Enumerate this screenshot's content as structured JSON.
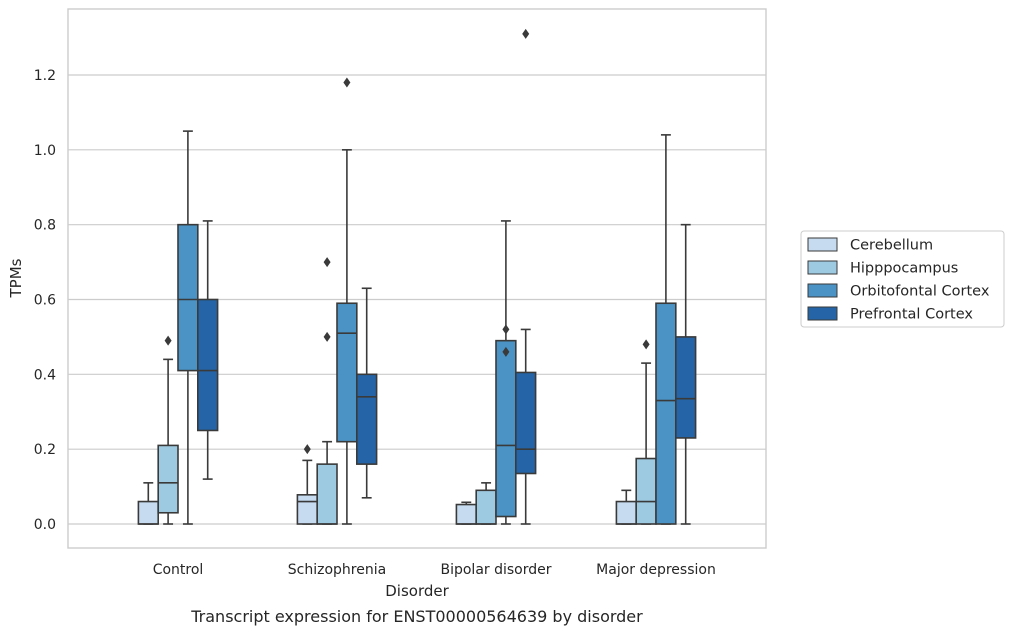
{
  "chart_data": {
    "type": "boxplot",
    "title": "",
    "caption": "Transcript expression for ENST00000564639 by disorder",
    "xlabel": "Disorder",
    "ylabel": "TPMs",
    "ylim": [
      -0.065,
      1.37
    ],
    "yticks": [
      0.0,
      0.2,
      0.4,
      0.6,
      0.8,
      1.0,
      1.2
    ],
    "ytick_labels": [
      "0.0",
      "0.2",
      "0.4",
      "0.6",
      "0.8",
      "1.0",
      "1.2"
    ],
    "categories": [
      "Control",
      "Schizophrenia",
      "Bipolar disorder",
      "Major depression"
    ],
    "grid": "horizontal",
    "legend": {
      "placement": "right",
      "entries": [
        "Cerebellum",
        "Hipppocampus",
        "Orbitofontal Cortex",
        "Prefrontal Cortex"
      ]
    },
    "colors": {
      "Cerebellum": "#c6dbef",
      "Hipppocampus": "#9ecae1",
      "Orbitofontal Cortex": "#4b93c4",
      "Prefrontal Cortex": "#2565a7",
      "box_edge": "#3a3a3a",
      "grid": "#cccccc"
    },
    "series": [
      {
        "name": "Cerebellum",
        "boxes": [
          {
            "whislo": 0.0,
            "q1": 0.0,
            "med": 0.0,
            "q3": 0.06,
            "whishi": 0.11,
            "fliers": []
          },
          {
            "whislo": 0.0,
            "q1": 0.0,
            "med": 0.06,
            "q3": 0.078,
            "whishi": 0.17,
            "fliers": [
              0.2
            ]
          },
          {
            "whislo": 0.0,
            "q1": 0.0,
            "med": 0.0,
            "q3": 0.052,
            "whishi": 0.058,
            "fliers": []
          },
          {
            "whislo": 0.0,
            "q1": 0.0,
            "med": 0.0,
            "q3": 0.06,
            "whishi": 0.09,
            "fliers": []
          }
        ]
      },
      {
        "name": "Hipppocampus",
        "boxes": [
          {
            "whislo": 0.0,
            "q1": 0.03,
            "med": 0.11,
            "q3": 0.21,
            "whishi": 0.44,
            "fliers": [
              0.49
            ]
          },
          {
            "whislo": 0.0,
            "q1": 0.0,
            "med": 0.0,
            "q3": 0.16,
            "whishi": 0.22,
            "fliers": [
              0.5,
              0.7
            ]
          },
          {
            "whislo": 0.0,
            "q1": 0.0,
            "med": 0.0,
            "q3": 0.09,
            "whishi": 0.11,
            "fliers": []
          },
          {
            "whislo": 0.0,
            "q1": 0.0,
            "med": 0.06,
            "q3": 0.175,
            "whishi": 0.43,
            "fliers": [
              0.48
            ]
          }
        ]
      },
      {
        "name": "Orbitofontal Cortex",
        "boxes": [
          {
            "whislo": 0.0,
            "q1": 0.41,
            "med": 0.6,
            "q3": 0.8,
            "whishi": 1.05,
            "fliers": []
          },
          {
            "whislo": 0.0,
            "q1": 0.22,
            "med": 0.51,
            "q3": 0.59,
            "whishi": 1.0,
            "fliers": [
              1.18
            ]
          },
          {
            "whislo": 0.0,
            "q1": 0.02,
            "med": 0.21,
            "q3": 0.49,
            "whishi": 0.81,
            "fliers": [
              0.46,
              0.52
            ]
          },
          {
            "whislo": 0.0,
            "q1": 0.0,
            "med": 0.33,
            "q3": 0.59,
            "whishi": 1.04,
            "fliers": []
          }
        ]
      },
      {
        "name": "Prefrontal Cortex",
        "boxes": [
          {
            "whislo": 0.12,
            "q1": 0.25,
            "med": 0.41,
            "q3": 0.6,
            "whishi": 0.81,
            "fliers": []
          },
          {
            "whislo": 0.07,
            "q1": 0.16,
            "med": 0.34,
            "q3": 0.4,
            "whishi": 0.63,
            "fliers": []
          },
          {
            "whislo": 0.0,
            "q1": 0.135,
            "med": 0.2,
            "q3": 0.405,
            "whishi": 0.52,
            "fliers": [
              1.31
            ]
          },
          {
            "whislo": 0.0,
            "q1": 0.23,
            "med": 0.335,
            "q3": 0.5,
            "whishi": 0.8,
            "fliers": []
          }
        ]
      }
    ]
  }
}
